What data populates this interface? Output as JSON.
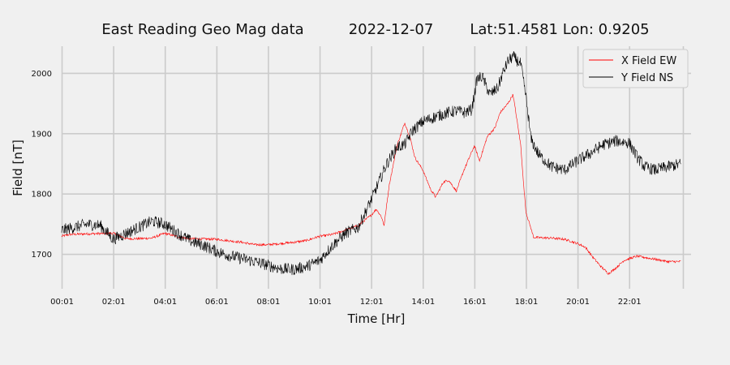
{
  "chart_data": {
    "type": "line",
    "title_parts": [
      "East Reading Geo Mag data",
      "2022-12-07",
      "Lat:51.4581  Lon: 0.9205"
    ],
    "xlabel": "Time  [Hr]",
    "ylabel": "Field  [nT]",
    "xlim": [
      0,
      24.4
    ],
    "ylim": [
      1643,
      2045
    ],
    "x_ticks": [
      0.0167,
      2.0167,
      4.0167,
      6.0167,
      8.0167,
      10.0167,
      12.0167,
      14.0167,
      16.0167,
      18.0167,
      20.0167,
      22.0167
    ],
    "x_tick_labels": [
      "00:01",
      "02:01",
      "04:01",
      "06:01",
      "08:01",
      "10:01",
      "12:01",
      "14:01",
      "16:01",
      "18:01",
      "20:01",
      "22:01"
    ],
    "x_extra_gridline": 24.1,
    "y_ticks": [
      1700,
      1800,
      1900,
      2000
    ],
    "grid": true,
    "legend_position": "top-right",
    "series": [
      {
        "name": "X Field EW",
        "color": "#ff0000",
        "noise": 2,
        "x": [
          0.0,
          0.3,
          1.0,
          2.0,
          2.5,
          3.0,
          3.5,
          4.0,
          4.5,
          5.0,
          6.0,
          7.0,
          7.5,
          8.0,
          8.5,
          9.0,
          9.5,
          10.0,
          10.5,
          11.0,
          11.5,
          12.0,
          12.2,
          12.4,
          12.5,
          12.7,
          13.0,
          13.3,
          13.5,
          13.7,
          14.0,
          14.3,
          14.5,
          14.8,
          15.0,
          15.3,
          15.6,
          16.0,
          16.2,
          16.5,
          16.8,
          17.0,
          17.3,
          17.5,
          17.8,
          17.9,
          18.0,
          18.3,
          19.0,
          19.5,
          20.0,
          20.3,
          20.6,
          20.9,
          21.2,
          21.5,
          21.8,
          22.3,
          23.0,
          23.5,
          24.0
        ],
        "y": [
          1730,
          1733,
          1734,
          1735,
          1726,
          1726,
          1727,
          1735,
          1729,
          1726,
          1725,
          1720,
          1716,
          1716,
          1718,
          1720,
          1723,
          1730,
          1733,
          1740,
          1748,
          1765,
          1775,
          1762,
          1748,
          1815,
          1880,
          1918,
          1895,
          1860,
          1840,
          1808,
          1795,
          1820,
          1823,
          1805,
          1840,
          1880,
          1855,
          1895,
          1910,
          1935,
          1950,
          1965,
          1880,
          1820,
          1770,
          1728,
          1727,
          1725,
          1718,
          1712,
          1695,
          1680,
          1668,
          1678,
          1690,
          1697,
          1692,
          1688,
          1688
        ]
      },
      {
        "name": "Y Field NS",
        "color": "#000000",
        "noise": 10,
        "x": [
          0.0,
          0.5,
          1.0,
          1.5,
          2.0,
          2.5,
          3.0,
          3.5,
          4.0,
          4.5,
          5.0,
          5.5,
          6.0,
          6.5,
          7.0,
          7.5,
          8.0,
          8.5,
          9.0,
          9.5,
          10.0,
          10.5,
          11.0,
          11.5,
          12.0,
          12.3,
          12.6,
          13.0,
          13.3,
          13.6,
          14.0,
          14.3,
          14.6,
          15.0,
          15.3,
          15.6,
          15.9,
          16.1,
          16.3,
          16.6,
          16.9,
          17.1,
          17.3,
          17.5,
          17.8,
          18.0,
          18.2,
          18.5,
          19.0,
          19.5,
          20.0,
          20.5,
          21.0,
          21.5,
          22.0,
          22.3,
          22.6,
          23.0,
          23.5,
          24.0
        ],
        "y": [
          1740,
          1745,
          1750,
          1748,
          1725,
          1735,
          1745,
          1755,
          1750,
          1735,
          1722,
          1715,
          1705,
          1698,
          1693,
          1688,
          1682,
          1676,
          1675,
          1680,
          1690,
          1715,
          1735,
          1745,
          1790,
          1820,
          1850,
          1878,
          1882,
          1905,
          1920,
          1925,
          1930,
          1935,
          1938,
          1935,
          1940,
          1990,
          1995,
          1965,
          1975,
          2000,
          2020,
          2028,
          2015,
          1960,
          1890,
          1865,
          1845,
          1840,
          1855,
          1868,
          1882,
          1888,
          1885,
          1862,
          1845,
          1840,
          1845,
          1850
        ]
      }
    ]
  }
}
